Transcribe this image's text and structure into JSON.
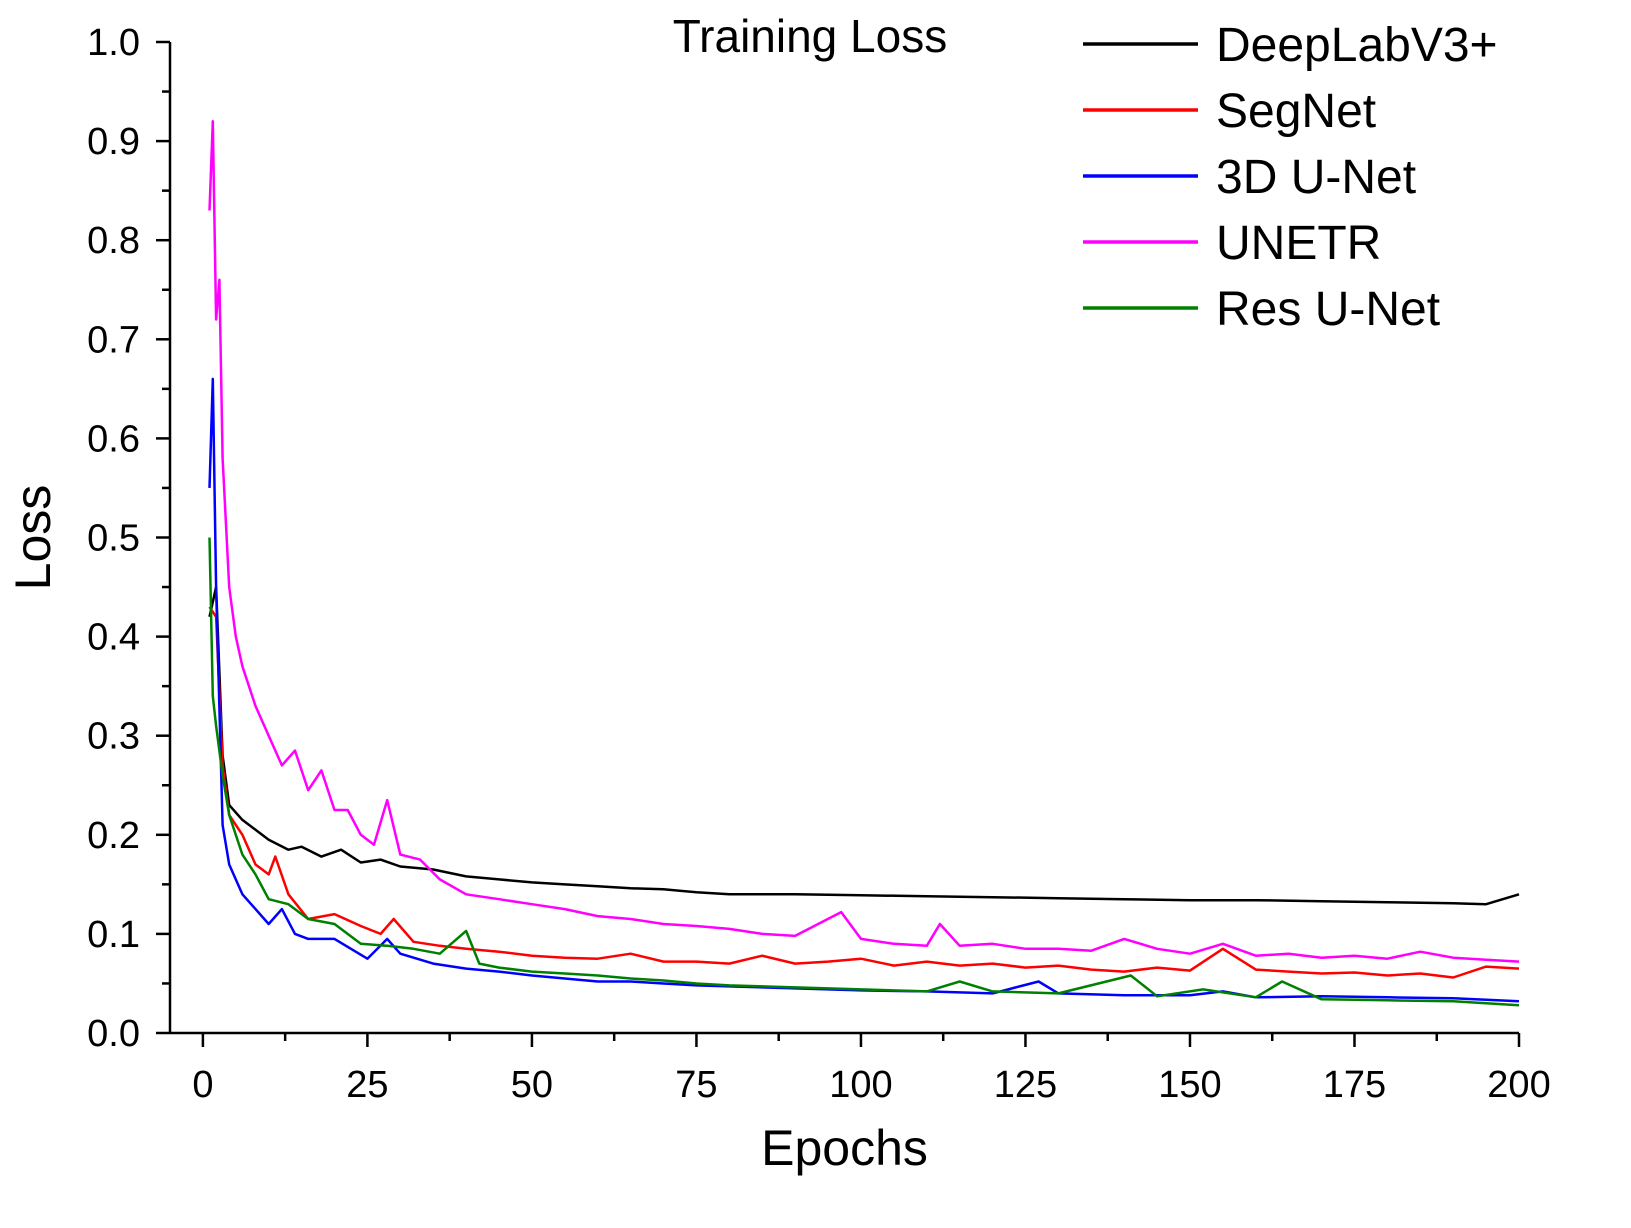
{
  "chart_data": {
    "type": "line",
    "title": "Training Loss",
    "xlabel": "Epochs",
    "ylabel": "Loss",
    "xlim": [
      -5,
      200
    ],
    "ylim": [
      0.0,
      1.0
    ],
    "xticks": [
      0,
      25,
      50,
      75,
      100,
      125,
      150,
      175,
      200
    ],
    "yticks": [
      0.0,
      0.1,
      0.2,
      0.3,
      0.4,
      0.5,
      0.6,
      0.7,
      0.8,
      0.9,
      1.0
    ],
    "xtick_labels": [
      "0",
      "25",
      "50",
      "75",
      "100",
      "125",
      "150",
      "175",
      "200"
    ],
    "ytick_labels": [
      "0.0",
      "0.1",
      "0.2",
      "0.3",
      "0.4",
      "0.5",
      "0.6",
      "0.7",
      "0.8",
      "0.9",
      "1.0"
    ],
    "grid": false,
    "legend_position": "top-right",
    "series": [
      {
        "name": "DeepLabV3+",
        "color": "#000000",
        "x": [
          1,
          2,
          3,
          4,
          6,
          8,
          10,
          13,
          15,
          18,
          21,
          24,
          27,
          30,
          35,
          40,
          45,
          50,
          55,
          60,
          65,
          70,
          75,
          80,
          90,
          100,
          110,
          120,
          130,
          140,
          150,
          160,
          170,
          180,
          190,
          195,
          200
        ],
        "y": [
          0.42,
          0.45,
          0.28,
          0.23,
          0.215,
          0.205,
          0.195,
          0.185,
          0.188,
          0.178,
          0.185,
          0.172,
          0.175,
          0.168,
          0.165,
          0.158,
          0.155,
          0.152,
          0.15,
          0.148,
          0.146,
          0.145,
          0.142,
          0.14,
          0.14,
          0.139,
          0.138,
          0.137,
          0.136,
          0.135,
          0.134,
          0.134,
          0.133,
          0.132,
          0.131,
          0.13,
          0.14
        ]
      },
      {
        "name": "SegNet",
        "color": "#ff0000",
        "x": [
          1,
          2,
          3,
          4,
          6,
          8,
          10,
          11,
          13,
          16,
          20,
          24,
          27,
          29,
          32,
          36,
          40,
          45,
          50,
          55,
          60,
          65,
          70,
          75,
          80,
          85,
          90,
          95,
          100,
          105,
          110,
          115,
          120,
          125,
          130,
          135,
          140,
          145,
          150,
          155,
          160,
          165,
          170,
          175,
          180,
          185,
          190,
          195,
          200
        ],
        "y": [
          0.43,
          0.42,
          0.27,
          0.22,
          0.2,
          0.17,
          0.16,
          0.178,
          0.14,
          0.115,
          0.12,
          0.108,
          0.1,
          0.115,
          0.092,
          0.088,
          0.085,
          0.082,
          0.078,
          0.076,
          0.075,
          0.08,
          0.072,
          0.072,
          0.07,
          0.078,
          0.07,
          0.072,
          0.075,
          0.068,
          0.072,
          0.068,
          0.07,
          0.066,
          0.068,
          0.064,
          0.062,
          0.066,
          0.063,
          0.085,
          0.064,
          0.062,
          0.06,
          0.061,
          0.058,
          0.06,
          0.056,
          0.067,
          0.065
        ]
      },
      {
        "name": "3D U-Net",
        "color": "#0000ff",
        "x": [
          1,
          1.5,
          2,
          3,
          4,
          6,
          8,
          10,
          12,
          14,
          16,
          20,
          25,
          28,
          30,
          35,
          40,
          45,
          50,
          55,
          60,
          65,
          70,
          75,
          80,
          90,
          100,
          110,
          120,
          127,
          130,
          140,
          150,
          155,
          160,
          170,
          180,
          190,
          200
        ],
        "y": [
          0.55,
          0.66,
          0.45,
          0.21,
          0.17,
          0.14,
          0.125,
          0.11,
          0.125,
          0.1,
          0.095,
          0.095,
          0.075,
          0.095,
          0.08,
          0.07,
          0.065,
          0.062,
          0.058,
          0.055,
          0.052,
          0.052,
          0.05,
          0.048,
          0.047,
          0.045,
          0.043,
          0.042,
          0.04,
          0.052,
          0.04,
          0.038,
          0.038,
          0.042,
          0.036,
          0.037,
          0.036,
          0.035,
          0.032
        ]
      },
      {
        "name": "UNETR",
        "color": "#ff00ff",
        "x": [
          1,
          1.5,
          2,
          2.5,
          3,
          4,
          5,
          6,
          8,
          10,
          12,
          14,
          16,
          18,
          20,
          22,
          24,
          26,
          28,
          30,
          33,
          36,
          40,
          45,
          50,
          55,
          60,
          65,
          70,
          75,
          80,
          85,
          90,
          97,
          100,
          105,
          110,
          112,
          115,
          120,
          125,
          130,
          135,
          140,
          145,
          150,
          155,
          160,
          165,
          170,
          175,
          180,
          185,
          190,
          195,
          200
        ],
        "y": [
          0.83,
          0.92,
          0.72,
          0.76,
          0.58,
          0.45,
          0.4,
          0.37,
          0.33,
          0.3,
          0.27,
          0.285,
          0.245,
          0.265,
          0.225,
          0.225,
          0.2,
          0.19,
          0.235,
          0.18,
          0.175,
          0.155,
          0.14,
          0.135,
          0.13,
          0.125,
          0.118,
          0.115,
          0.11,
          0.108,
          0.105,
          0.1,
          0.098,
          0.122,
          0.095,
          0.09,
          0.088,
          0.11,
          0.088,
          0.09,
          0.085,
          0.085,
          0.083,
          0.095,
          0.085,
          0.08,
          0.09,
          0.078,
          0.08,
          0.076,
          0.078,
          0.075,
          0.082,
          0.076,
          0.074,
          0.072
        ]
      },
      {
        "name": "Res U-Net",
        "color": "#008000",
        "x": [
          1,
          1.5,
          2,
          3,
          4,
          6,
          8,
          10,
          13,
          16,
          20,
          24,
          28,
          32,
          36,
          40,
          42,
          45,
          50,
          55,
          60,
          65,
          70,
          75,
          80,
          90,
          100,
          110,
          115,
          120,
          130,
          141,
          145,
          152,
          160,
          164,
          170,
          180,
          190,
          200
        ],
        "y": [
          0.5,
          0.34,
          0.31,
          0.26,
          0.22,
          0.18,
          0.16,
          0.135,
          0.13,
          0.115,
          0.11,
          0.09,
          0.088,
          0.085,
          0.08,
          0.103,
          0.07,
          0.066,
          0.062,
          0.06,
          0.058,
          0.055,
          0.053,
          0.05,
          0.048,
          0.046,
          0.044,
          0.042,
          0.052,
          0.042,
          0.04,
          0.058,
          0.037,
          0.044,
          0.036,
          0.052,
          0.034,
          0.033,
          0.032,
          0.028
        ]
      }
    ]
  }
}
